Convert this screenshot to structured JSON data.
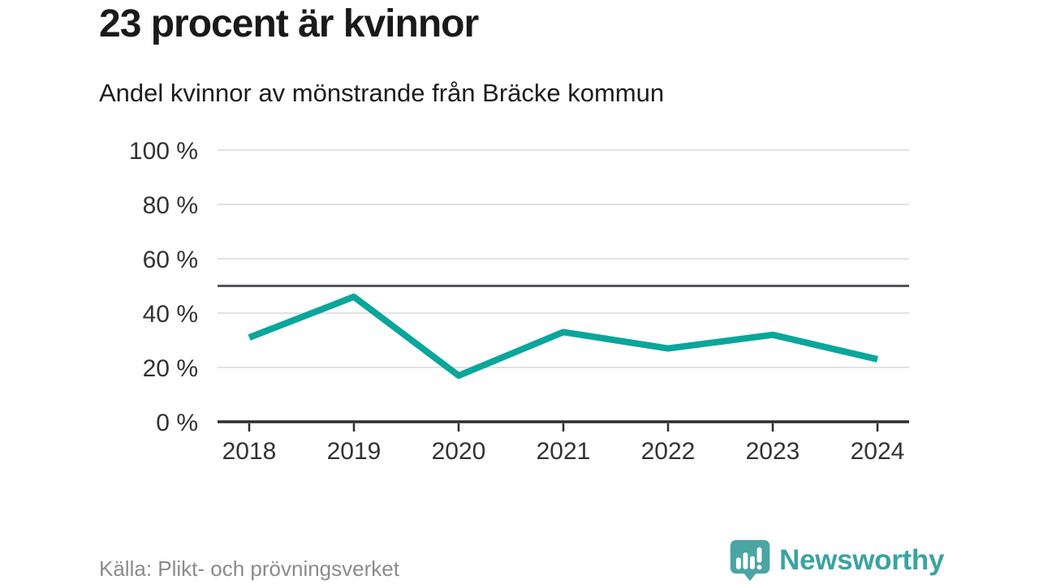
{
  "header": {
    "title": "23 procent är kvinnor",
    "subtitle": "Andel kvinnor av mönstrande från Bräcke kommun"
  },
  "chart_data": {
    "type": "line",
    "title": "23 procent är kvinnor",
    "subtitle": "Andel kvinnor av mönstrande från Bräcke kommun",
    "x": [
      "2018",
      "2019",
      "2020",
      "2021",
      "2022",
      "2023",
      "2024"
    ],
    "series": [
      {
        "name": "Andel kvinnor av mönstrande",
        "values": [
          31,
          46,
          17,
          33,
          27,
          32,
          23
        ]
      }
    ],
    "unit": "%",
    "xlabel": "",
    "ylabel": "",
    "ylim": [
      0,
      100
    ],
    "grid": true,
    "legend_position": "none",
    "y_ticks": [
      {
        "value": 0,
        "label": "0 %"
      },
      {
        "value": 20,
        "label": "20 %"
      },
      {
        "value": 40,
        "label": "40 %"
      },
      {
        "value": 60,
        "label": "60 %"
      },
      {
        "value": 80,
        "label": "80 %"
      },
      {
        "value": 100,
        "label": "100 %"
      }
    ],
    "reference_line": {
      "value": 50,
      "color": "#54555c"
    },
    "line_color": "#0aa69b",
    "grid_color": "#e2e2e2",
    "axis_color": "#2d2d2d",
    "tick_label_color": "#333333"
  },
  "footer": {
    "source": "Källa: Plikt- och prövningsverket",
    "brand": "Newsworthy",
    "brand_color": "#3ba3a1",
    "logo_icon": "newsworthy-speech-bubble-chart-icon"
  }
}
